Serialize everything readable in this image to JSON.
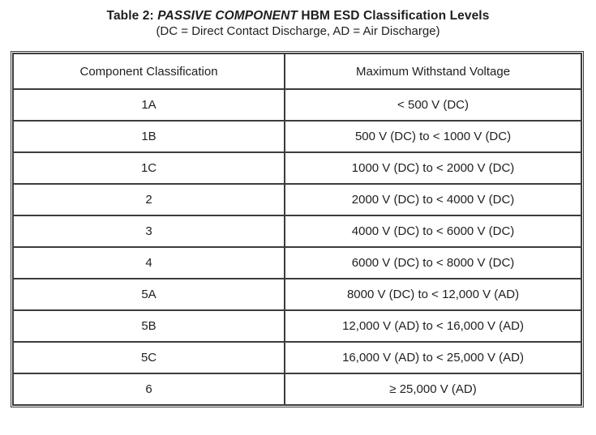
{
  "title": {
    "prefix": "Table 2: ",
    "emphasis": "PASSIVE COMPONENT",
    "suffix": " HBM ESD Classification Levels",
    "subtitle": "(DC = Direct Contact Discharge, AD = Air Discharge)"
  },
  "table": {
    "columns": {
      "classification": "Component Classification",
      "voltage": "Maximum Withstand Voltage"
    },
    "rows": [
      {
        "classification": "1A",
        "voltage": "< 500 V (DC)"
      },
      {
        "classification": "1B",
        "voltage": "500 V (DC) to < 1000 V (DC)"
      },
      {
        "classification": "1C",
        "voltage": "1000 V (DC) to < 2000 V (DC)"
      },
      {
        "classification": "2",
        "voltage": "2000 V (DC) to < 4000 V (DC)"
      },
      {
        "classification": "3",
        "voltage": "4000 V (DC) to < 6000 V (DC)"
      },
      {
        "classification": "4",
        "voltage": "6000 V (DC) to < 8000 V (DC)"
      },
      {
        "classification": "5A",
        "voltage": "8000 V (DC) to < 12,000 V (AD)"
      },
      {
        "classification": "5B",
        "voltage": "12,000 V (AD) to < 16,000 V (AD)"
      },
      {
        "classification": "5C",
        "voltage": "16,000 V (AD) to < 25,000 V (AD)"
      },
      {
        "classification": "6",
        "voltage": "≥ 25,000 V (AD)"
      }
    ]
  },
  "colors": {
    "border": "#3c3c3c",
    "text": "#1f1f1f",
    "background": "#ffffff"
  }
}
